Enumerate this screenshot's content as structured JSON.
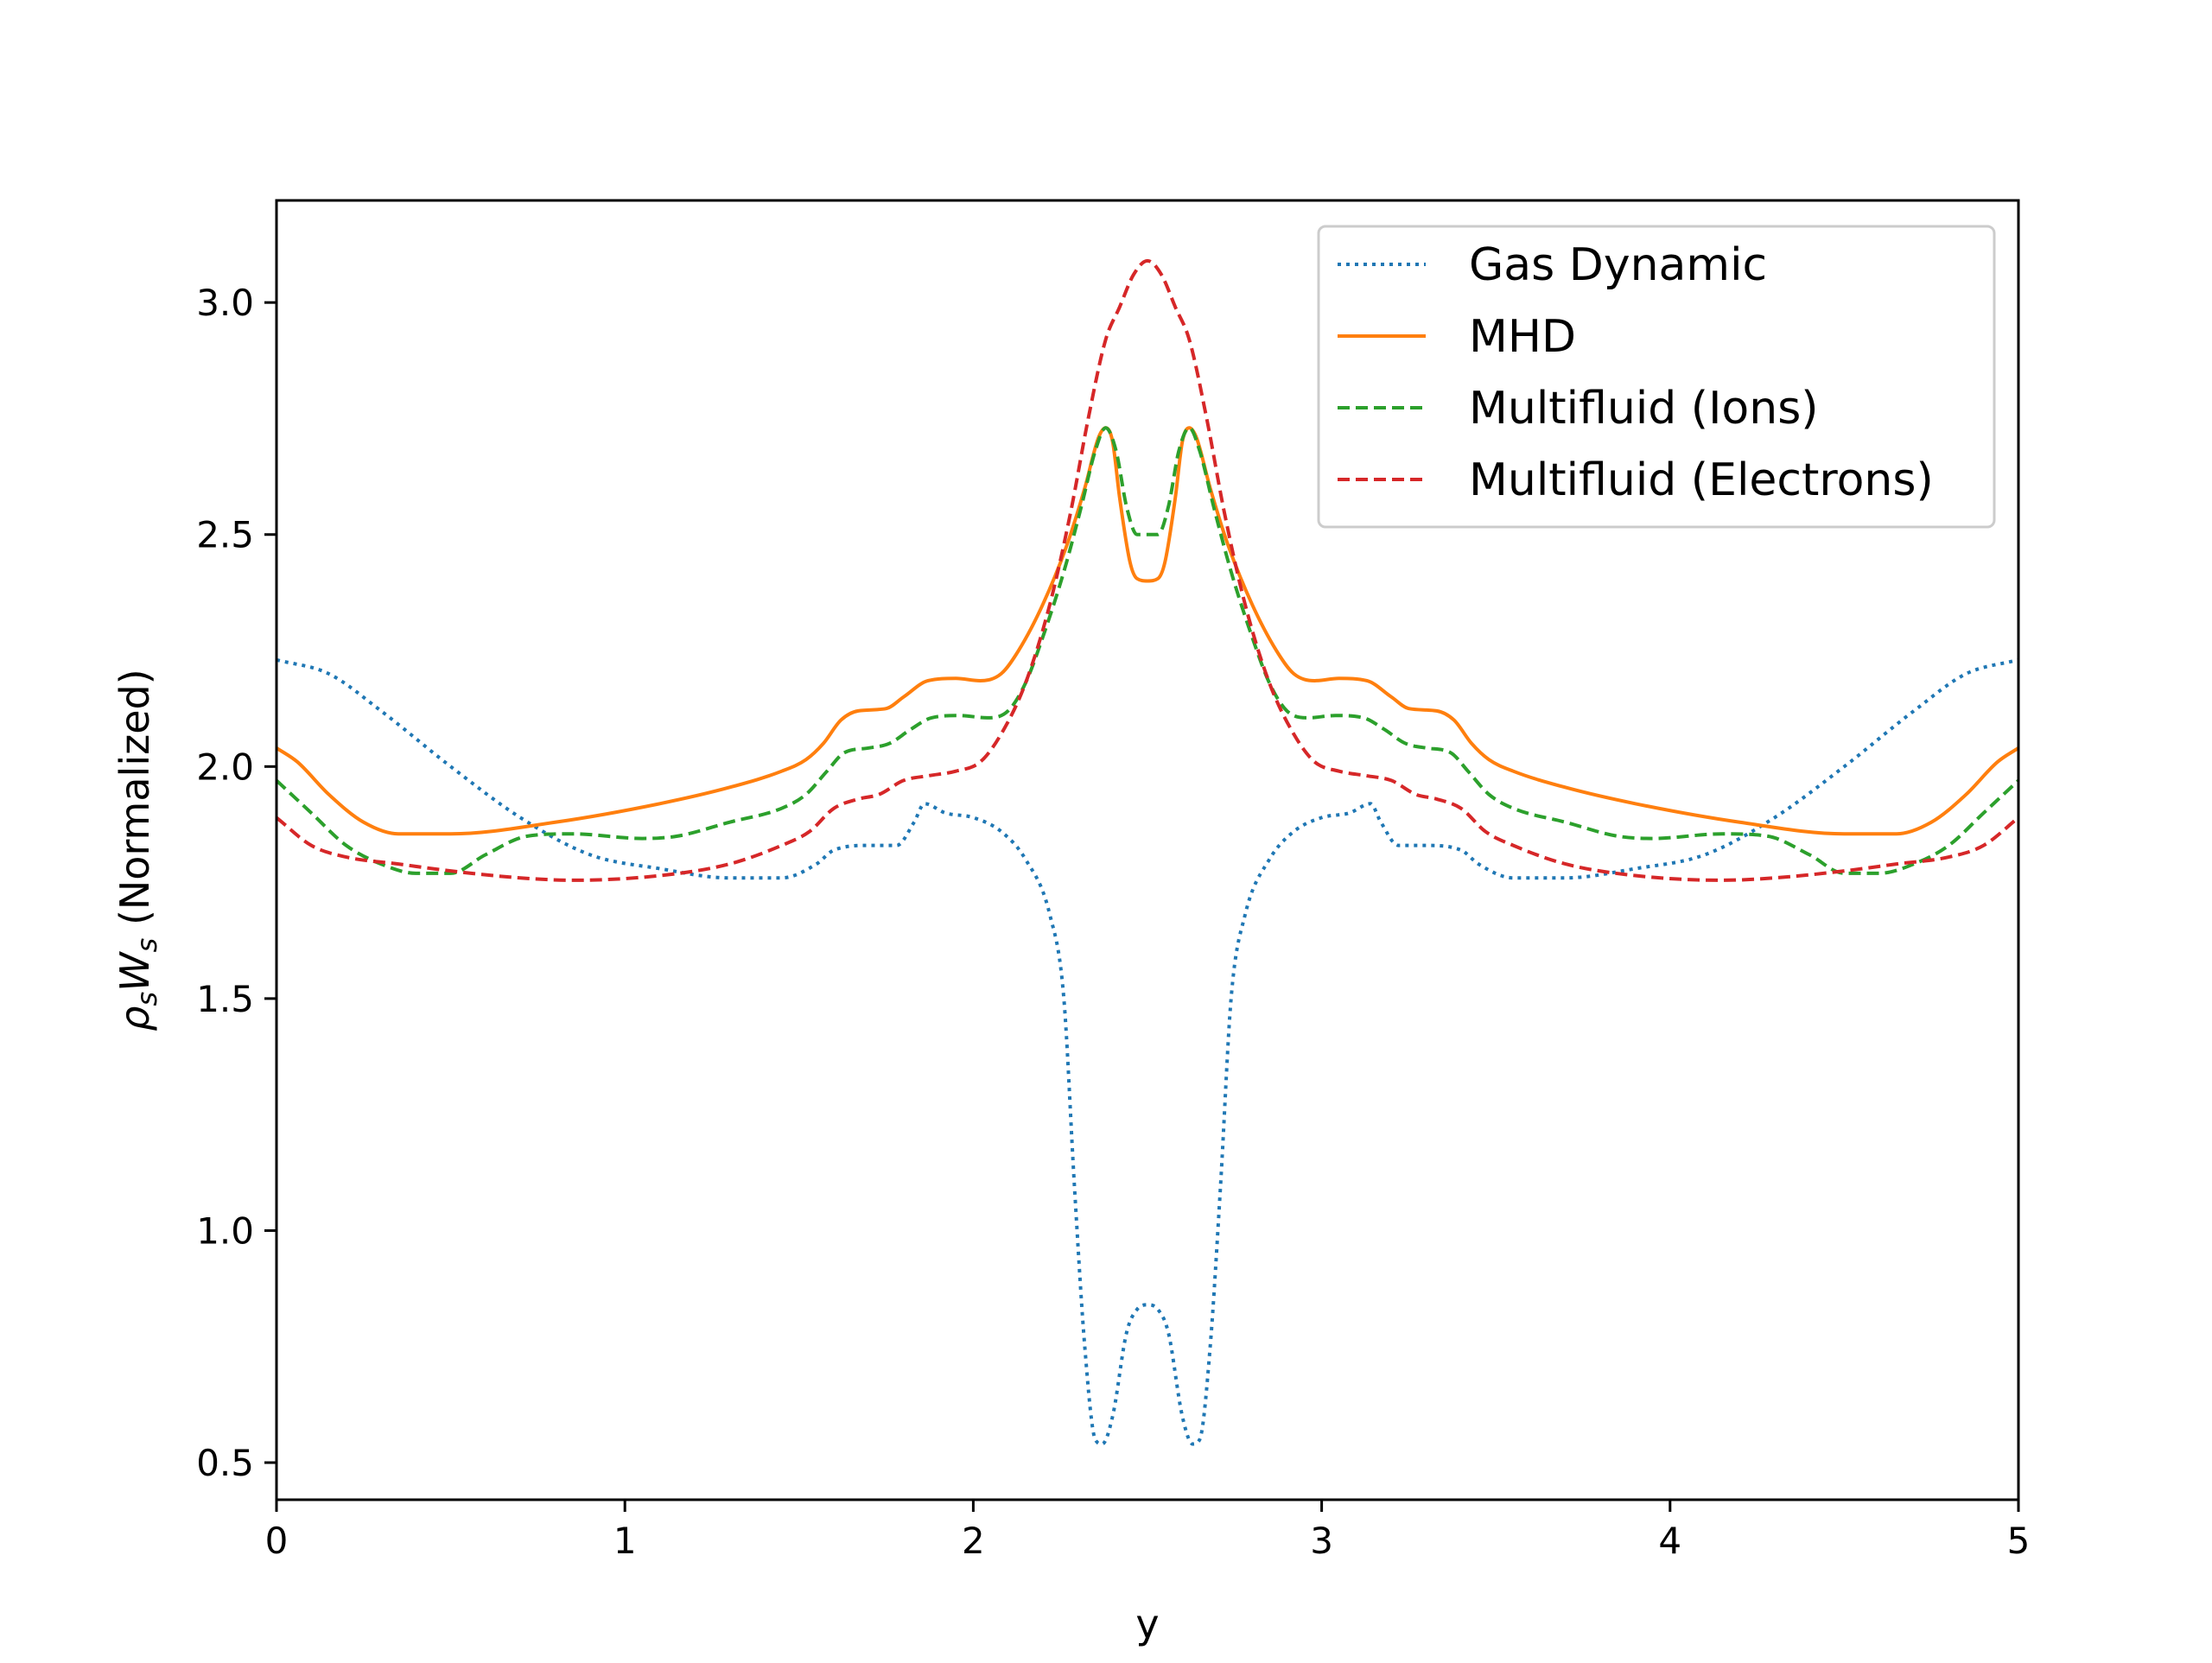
{
  "chart_data": {
    "type": "line",
    "xlabel": "y",
    "ylabel": "ρsWs (Normalized)",
    "ylabel_parts": {
      "rho": "ρ",
      "rho_sub": "s",
      "w": "W",
      "w_sub": "s",
      "suffix": " (Normalized)"
    },
    "xlim": [
      0,
      5
    ],
    "ylim": [
      0.42,
      3.22
    ],
    "x_ticks": [
      0,
      1,
      2,
      3,
      4,
      5
    ],
    "x_tick_labels": [
      "0",
      "1",
      "2",
      "3",
      "4",
      "5"
    ],
    "y_ticks": [
      0.5,
      1.0,
      1.5,
      2.0,
      2.5,
      3.0
    ],
    "y_tick_labels": [
      "0.5",
      "1.0",
      "1.5",
      "2.0",
      "2.5",
      "3.0"
    ],
    "grid": false,
    "legend_position": "top-right",
    "symmetric_about": 2.5,
    "series": [
      {
        "name": "Gas Dynamic",
        "color": "#1f77b4",
        "style": "dotted",
        "half_points": [
          [
            0,
            2.23
          ],
          [
            0.15,
            2.2
          ],
          [
            0.3,
            2.12
          ],
          [
            0.5,
            2.0
          ],
          [
            0.7,
            1.89
          ],
          [
            0.9,
            1.81
          ],
          [
            1.1,
            1.78
          ],
          [
            1.3,
            1.76
          ],
          [
            1.45,
            1.76
          ],
          [
            1.55,
            1.79
          ],
          [
            1.6,
            1.82
          ],
          [
            1.7,
            1.83
          ],
          [
            1.78,
            1.83
          ],
          [
            1.83,
            1.88
          ],
          [
            1.86,
            1.92
          ],
          [
            1.92,
            1.9
          ],
          [
            2.0,
            1.89
          ],
          [
            2.08,
            1.86
          ],
          [
            2.15,
            1.8
          ],
          [
            2.22,
            1.68
          ],
          [
            2.26,
            1.5
          ],
          [
            2.29,
            1.1
          ],
          [
            2.32,
            0.75
          ],
          [
            2.35,
            0.55
          ],
          [
            2.37,
            0.54
          ],
          [
            2.4,
            0.6
          ],
          [
            2.44,
            0.78
          ],
          [
            2.47,
            0.83
          ],
          [
            2.5,
            0.84
          ]
        ]
      },
      {
        "name": "MHD",
        "color": "#ff7f0e",
        "style": "solid",
        "half_points": [
          [
            0,
            2.04
          ],
          [
            0.06,
            2.01
          ],
          [
            0.15,
            1.94
          ],
          [
            0.25,
            1.88
          ],
          [
            0.35,
            1.855
          ],
          [
            0.5,
            1.855
          ],
          [
            0.8,
            1.88
          ],
          [
            1.1,
            1.92
          ],
          [
            1.3,
            1.955
          ],
          [
            1.45,
            1.99
          ],
          [
            1.52,
            2.015
          ],
          [
            1.57,
            2.05
          ],
          [
            1.62,
            2.1
          ],
          [
            1.67,
            2.12
          ],
          [
            1.75,
            2.125
          ],
          [
            1.8,
            2.15
          ],
          [
            1.87,
            2.185
          ],
          [
            1.95,
            2.19
          ],
          [
            2.02,
            2.185
          ],
          [
            2.08,
            2.2
          ],
          [
            2.13,
            2.25
          ],
          [
            2.2,
            2.35
          ],
          [
            2.27,
            2.48
          ],
          [
            2.32,
            2.6
          ],
          [
            2.36,
            2.71
          ],
          [
            2.38,
            2.73
          ],
          [
            2.4,
            2.7
          ],
          [
            2.42,
            2.58
          ],
          [
            2.45,
            2.44
          ],
          [
            2.47,
            2.405
          ],
          [
            2.5,
            2.4
          ]
        ]
      },
      {
        "name": "Multifluid (Ions)",
        "color": "#2ca02c",
        "style": "dashed",
        "half_points": [
          [
            0,
            1.97
          ],
          [
            0.1,
            1.9
          ],
          [
            0.2,
            1.83
          ],
          [
            0.3,
            1.79
          ],
          [
            0.4,
            1.77
          ],
          [
            0.5,
            1.77
          ],
          [
            0.6,
            1.81
          ],
          [
            0.72,
            1.85
          ],
          [
            0.85,
            1.855
          ],
          [
            1.05,
            1.845
          ],
          [
            1.15,
            1.85
          ],
          [
            1.3,
            1.88
          ],
          [
            1.45,
            1.91
          ],
          [
            1.52,
            1.94
          ],
          [
            1.58,
            1.99
          ],
          [
            1.63,
            2.03
          ],
          [
            1.7,
            2.04
          ],
          [
            1.76,
            2.05
          ],
          [
            1.82,
            2.08
          ],
          [
            1.88,
            2.105
          ],
          [
            1.96,
            2.11
          ],
          [
            2.04,
            2.105
          ],
          [
            2.1,
            2.12
          ],
          [
            2.15,
            2.18
          ],
          [
            2.2,
            2.28
          ],
          [
            2.26,
            2.42
          ],
          [
            2.31,
            2.56
          ],
          [
            2.35,
            2.68
          ],
          [
            2.38,
            2.73
          ],
          [
            2.41,
            2.68
          ],
          [
            2.44,
            2.56
          ],
          [
            2.47,
            2.5
          ],
          [
            2.5,
            2.5
          ]
        ]
      },
      {
        "name": "Multifluid (Electrons)",
        "color": "#d62728",
        "style": "dashed",
        "half_points": [
          [
            0,
            1.89
          ],
          [
            0.1,
            1.83
          ],
          [
            0.2,
            1.805
          ],
          [
            0.35,
            1.79
          ],
          [
            0.5,
            1.775
          ],
          [
            0.7,
            1.76
          ],
          [
            0.85,
            1.755
          ],
          [
            1.1,
            1.765
          ],
          [
            1.3,
            1.79
          ],
          [
            1.45,
            1.83
          ],
          [
            1.53,
            1.86
          ],
          [
            1.6,
            1.91
          ],
          [
            1.67,
            1.93
          ],
          [
            1.73,
            1.94
          ],
          [
            1.8,
            1.97
          ],
          [
            1.87,
            1.98
          ],
          [
            1.95,
            1.99
          ],
          [
            2.02,
            2.01
          ],
          [
            2.08,
            2.07
          ],
          [
            2.15,
            2.18
          ],
          [
            2.22,
            2.35
          ],
          [
            2.28,
            2.55
          ],
          [
            2.33,
            2.75
          ],
          [
            2.38,
            2.92
          ],
          [
            2.42,
            2.99
          ],
          [
            2.46,
            3.06
          ],
          [
            2.5,
            3.09
          ]
        ]
      }
    ]
  }
}
